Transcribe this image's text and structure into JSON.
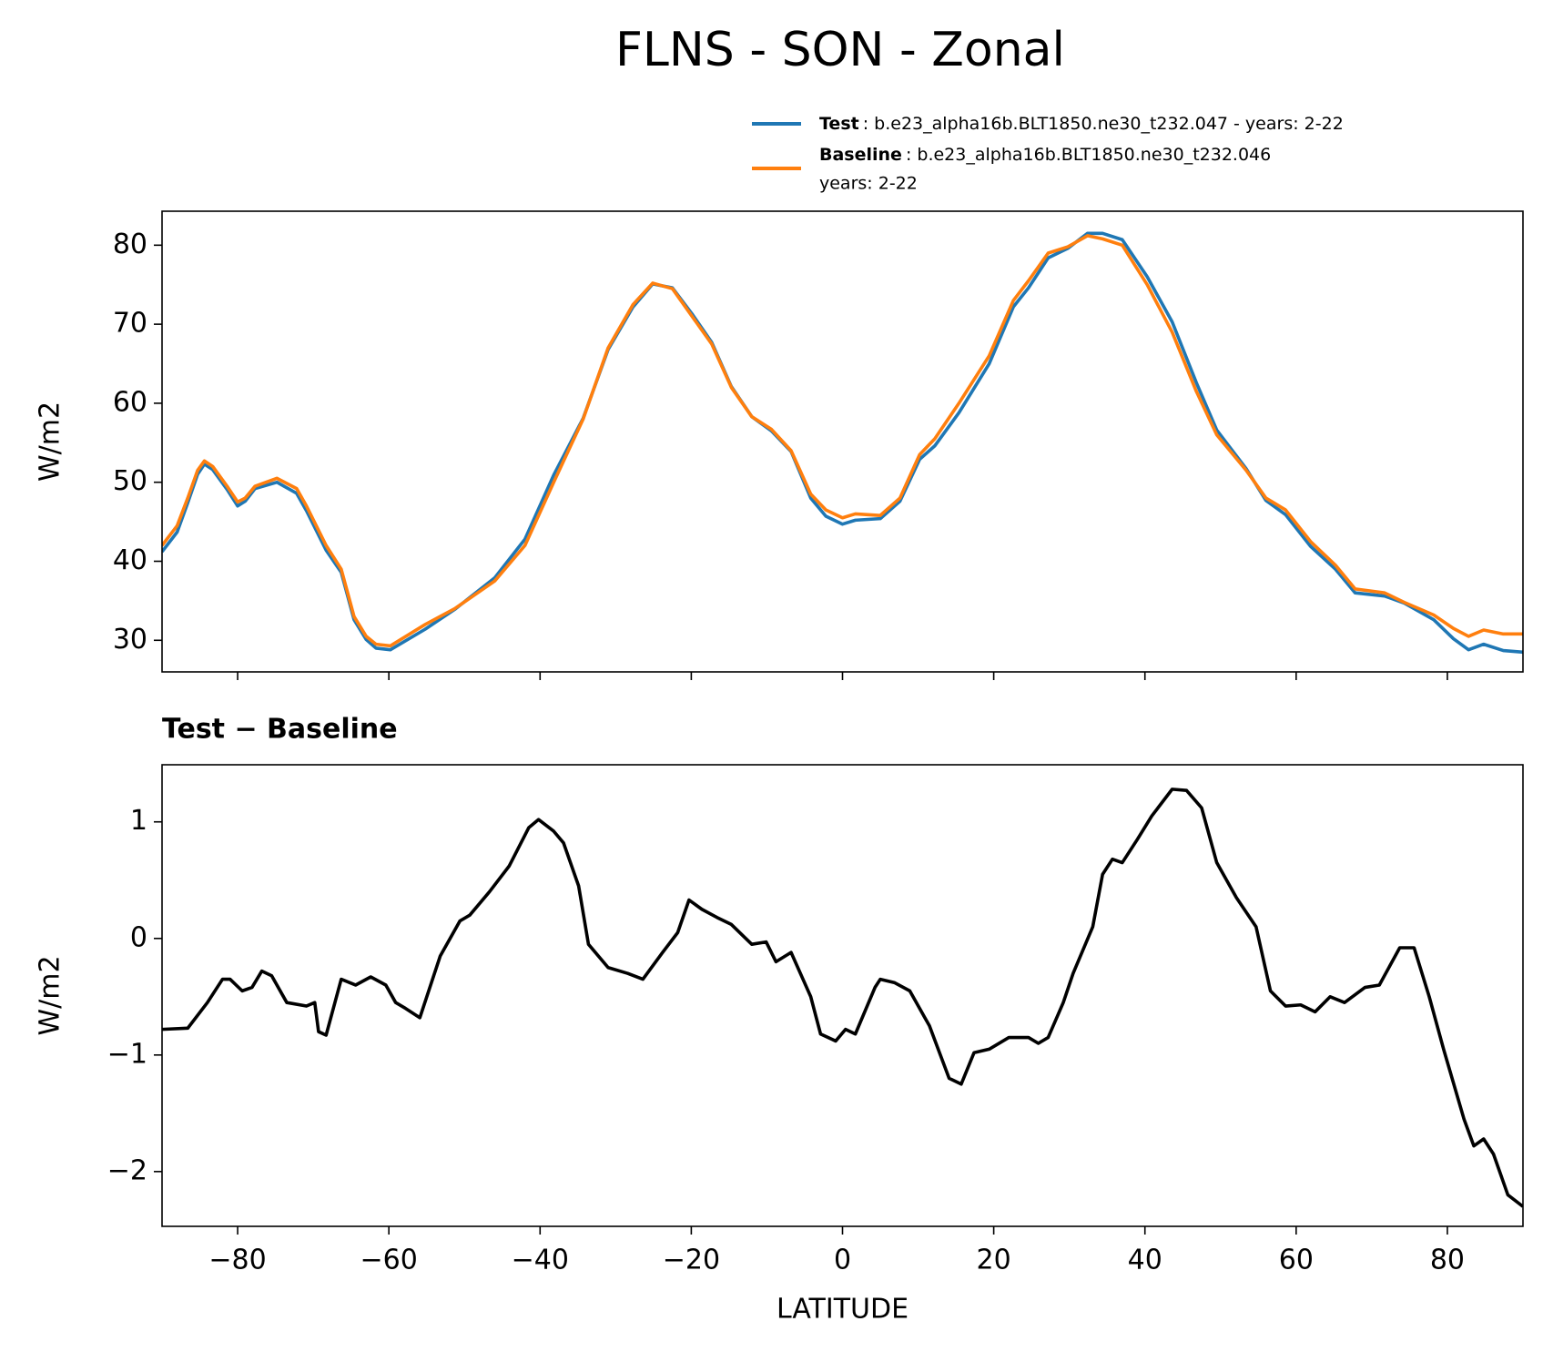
{
  "title": "FLNS - SON - Zonal",
  "chart_data": [
    {
      "type": "line",
      "ylabel": "W/m2",
      "xlim": [
        -90,
        90
      ],
      "xticks": [
        -80,
        -60,
        -40,
        -20,
        0,
        20,
        40,
        60,
        80
      ],
      "ylim": [
        26,
        84.3
      ],
      "yticks": [
        30,
        40,
        50,
        60,
        70,
        80
      ],
      "x": [
        -90,
        -88,
        -86.6,
        -85.3,
        -84.4,
        -83.3,
        -81.4,
        -80,
        -79,
        -77.7,
        -74.8,
        -72.2,
        -70.9,
        -68.3,
        -66.3,
        -64.6,
        -63,
        -61.7,
        -59.8,
        -55.2,
        -51.3,
        -46,
        -42,
        -38.2,
        -34.3,
        -31,
        -27.7,
        -25.1,
        -22.5,
        -19.9,
        -17.3,
        -14.7,
        -12,
        -9.4,
        -6.8,
        -4.2,
        -2.2,
        0,
        1.7,
        5,
        7.6,
        10.2,
        12.2,
        15.4,
        19.4,
        22.6,
        24.6,
        27.2,
        29.8,
        32.4,
        34.4,
        37,
        40.3,
        43.6,
        46.8,
        49.5,
        53.4,
        56,
        58.6,
        61.9,
        65.2,
        67.8,
        71.7,
        74.3,
        78.2,
        80.8,
        82.8,
        84.8,
        87.4,
        90
      ],
      "series": [
        {
          "name": "Test",
          "description": [
            ": b.e23_alpha16b.BLT1850.ne30_t232.047 - years: 2-22"
          ],
          "color": "#1f77b4",
          "values": [
            41.2,
            43.7,
            47.4,
            51,
            52.3,
            51.6,
            49.1,
            47,
            47.6,
            49.2,
            50,
            48.6,
            46.4,
            41.4,
            38.6,
            32.6,
            30.1,
            29,
            28.8,
            31.4,
            33.9,
            37.9,
            42.8,
            50.9,
            58.1,
            66.8,
            72.2,
            75.1,
            74.6,
            71.3,
            67.7,
            62.1,
            58.3,
            56.5,
            53.9,
            48,
            45.7,
            44.7,
            45.2,
            45.4,
            47.6,
            52.9,
            54.6,
            58.8,
            65,
            72.2,
            74.6,
            78.4,
            79.6,
            81.5,
            81.5,
            80.7,
            76,
            70.3,
            62.6,
            56.6,
            51.7,
            47.7,
            45.9,
            41.9,
            39,
            36,
            35.6,
            34.7,
            32.6,
            30.2,
            28.8,
            29.5,
            28.7,
            28.5
          ]
        },
        {
          "name": "Baseline",
          "description": [
            ": b.e23_alpha16b.BLT1850.ne30_t232.046",
            "years: 2-22"
          ],
          "color": "#ff7f0e",
          "values": [
            42,
            44.5,
            48,
            51.5,
            52.7,
            52,
            49.5,
            47.5,
            48,
            49.5,
            50.5,
            49.2,
            47,
            42,
            39,
            33,
            30.5,
            29.5,
            29.3,
            32,
            34,
            37.5,
            42,
            50,
            58,
            67,
            72.5,
            75.2,
            74.5,
            71,
            67.5,
            62,
            58.3,
            56.7,
            54,
            48.5,
            46.5,
            45.5,
            46,
            45.8,
            48,
            53.5,
            55.5,
            60,
            66,
            73,
            75.5,
            79,
            79.8,
            81.2,
            80.8,
            80,
            75,
            69,
            61.5,
            56,
            51.5,
            48,
            46.5,
            42.5,
            39.5,
            36.5,
            36,
            34.8,
            33.2,
            31.5,
            30.5,
            31.3,
            30.8,
            30.8
          ]
        }
      ]
    },
    {
      "type": "line",
      "title": "Test − Baseline",
      "xlabel": "LATITUDE",
      "ylabel": "W/m2",
      "xlim": [
        -90,
        90
      ],
      "xticks": [
        {
          "value": -80,
          "label": "−80"
        },
        {
          "value": -60,
          "label": "−60"
        },
        {
          "value": -40,
          "label": "−40"
        },
        {
          "value": -20,
          "label": "−20"
        },
        0,
        20,
        40,
        60,
        80
      ],
      "ylim": [
        -2.47,
        1.49
      ],
      "yticks": [
        {
          "value": -2,
          "label": "−2"
        },
        {
          "value": -1,
          "label": "−1"
        },
        0,
        1
      ],
      "x": [
        -90,
        -86.6,
        -84,
        -82,
        -81,
        -79.4,
        -78.1,
        -76.8,
        -75.5,
        -73.5,
        -70.9,
        -69.8,
        -69.3,
        -68.3,
        -66.3,
        -64.4,
        -62.4,
        -60.4,
        -59.1,
        -57.8,
        -55.9,
        -53.2,
        -50.6,
        -49.3,
        -46.7,
        -44.1,
        -41.5,
        -40.2,
        -38.2,
        -36.9,
        -34.9,
        -33.6,
        -31,
        -28.4,
        -26.4,
        -23.8,
        -21.8,
        -20.3,
        -18.6,
        -16.6,
        -14.7,
        -12,
        -10.1,
        -8.8,
        -6.8,
        -4.2,
        -2.9,
        -0.9,
        0.4,
        1.7,
        4.3,
        5,
        6.9,
        8.9,
        11.5,
        14.1,
        15.7,
        17.4,
        19.4,
        22,
        24.6,
        25.9,
        27.2,
        29.2,
        30.5,
        33.1,
        34.4,
        35.7,
        37,
        39,
        40.9,
        43.6,
        45.5,
        47.5,
        49.5,
        52.1,
        54.7,
        56.6,
        58.6,
        60.6,
        62.5,
        64.5,
        66.4,
        69.1,
        71,
        73.7,
        75.6,
        77.6,
        79.5,
        82.2,
        83.5,
        84.8,
        86.1,
        88,
        90
      ],
      "series": [
        {
          "color": "#000000",
          "values": [
            -0.78,
            -0.77,
            -0.55,
            -0.35,
            -0.35,
            -0.45,
            -0.42,
            -0.28,
            -0.32,
            -0.55,
            -0.58,
            -0.55,
            -0.8,
            -0.83,
            -0.35,
            -0.4,
            -0.33,
            -0.4,
            -0.55,
            -0.6,
            -0.68,
            -0.15,
            0.15,
            0.2,
            0.4,
            0.62,
            0.95,
            1.02,
            0.92,
            0.82,
            0.45,
            -0.05,
            -0.25,
            -0.3,
            -0.35,
            -0.12,
            0.05,
            0.33,
            0.25,
            0.18,
            0.12,
            -0.05,
            -0.03,
            -0.2,
            -0.12,
            -0.5,
            -0.82,
            -0.88,
            -0.78,
            -0.82,
            -0.42,
            -0.35,
            -0.38,
            -0.45,
            -0.75,
            -1.2,
            -1.25,
            -0.98,
            -0.95,
            -0.85,
            -0.85,
            -0.9,
            -0.85,
            -0.55,
            -0.3,
            0.1,
            0.55,
            0.68,
            0.65,
            0.85,
            1.05,
            1.28,
            1.27,
            1.12,
            0.65,
            0.35,
            0.1,
            -0.45,
            -0.58,
            -0.57,
            -0.63,
            -0.5,
            -0.55,
            -0.42,
            -0.4,
            -0.08,
            -0.08,
            -0.5,
            -0.95,
            -1.55,
            -1.78,
            -1.72,
            -1.85,
            -2.2,
            -2.3
          ]
        }
      ]
    }
  ]
}
